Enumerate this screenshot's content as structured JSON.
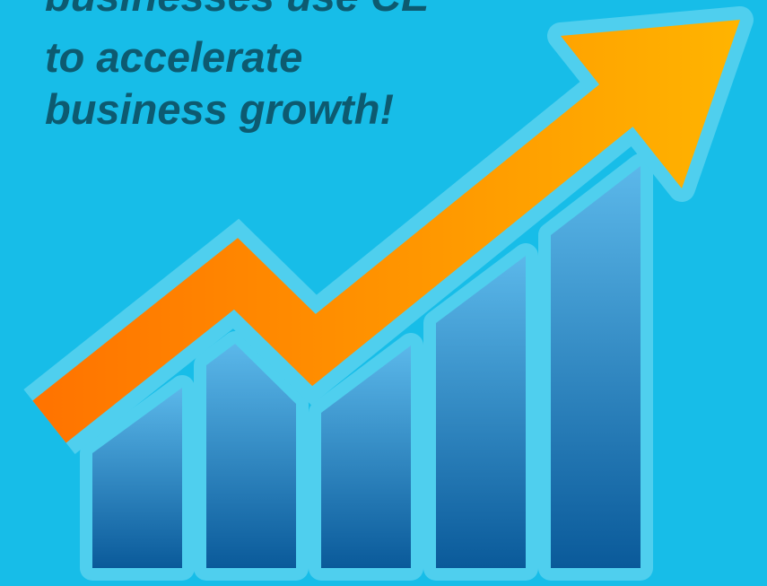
{
  "headline": {
    "lines": [
      "businesses use CE",
      "to accelerate",
      "business growth!"
    ]
  }
}
